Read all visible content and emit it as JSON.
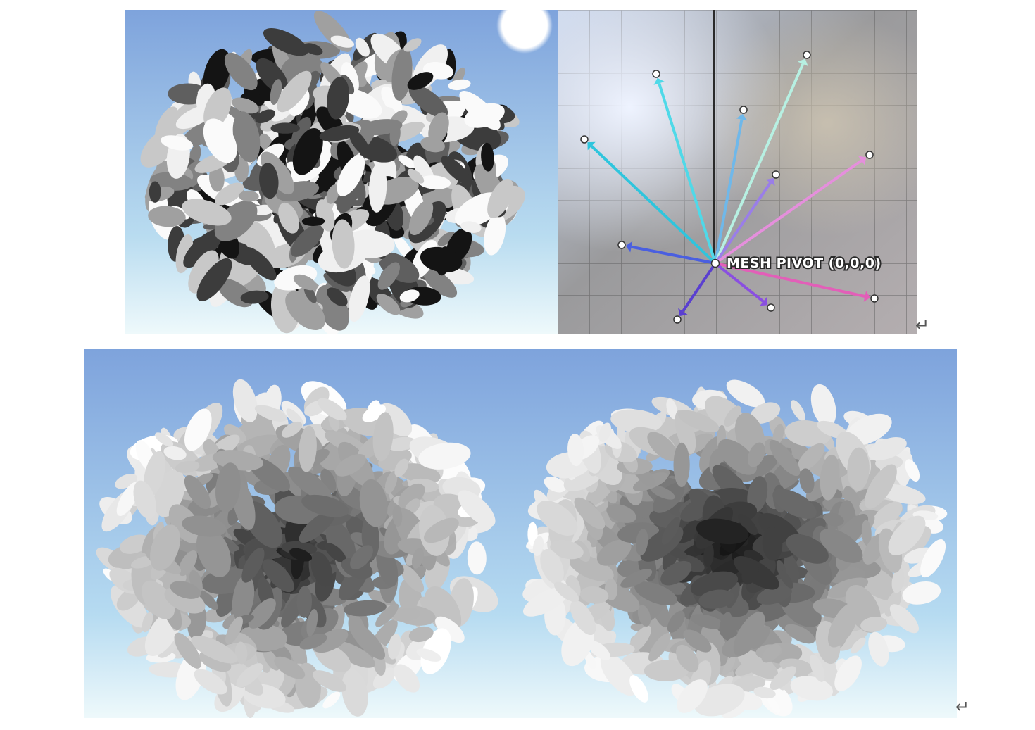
{
  "figure": {
    "top_left": {
      "kind": "leaf-cluster-render",
      "style": "random-grey"
    },
    "top_right": {
      "kind": "pivot-vector-diagram",
      "pivot_label": "MESH PIVOT (0,0,0)"
    },
    "bottom_left": {
      "kind": "leaf-cluster-render",
      "style": "gradient-dark-center"
    },
    "bottom_right": {
      "kind": "leaf-cluster-render",
      "style": "smooth-radial-dark-center"
    }
  },
  "paragraph_mark": "↵",
  "colors": {
    "sky_top": "#7ea3dc",
    "sky_bottom": "#e6f6fb",
    "arrow_cyan": "#2fc5dd",
    "arrow_blue": "#4a5fe0",
    "arrow_purple": "#8a4fe0",
    "arrow_pink": "#e25fb8",
    "arrow_mint": "#b7f0e2"
  }
}
